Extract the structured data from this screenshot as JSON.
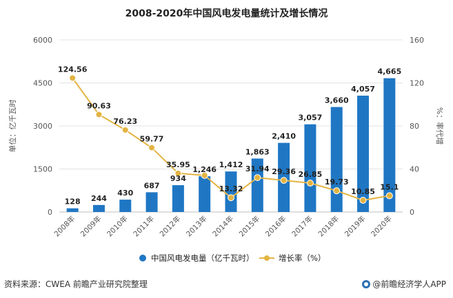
{
  "footer": {
    "source": "资料来源：CWEA 前瞻产业研究院整理",
    "brand": "@前瞻经济学人APP",
    "brand_icon": "qianzhan-logo-icon"
  },
  "colors": {
    "bar": "#1f77c4",
    "line": "#e3b443",
    "grid": "#e3e3e3",
    "axis": "#bdbdbd"
  },
  "chart_data": {
    "type": "bar",
    "title": "2008-2020年中国风电发电量统计及增长情况",
    "categories": [
      "2008年",
      "2009年",
      "2010年",
      "2011年",
      "2012年",
      "2013年",
      "2014年",
      "2015年",
      "2016年",
      "2017年",
      "2018年",
      "2019年",
      "2020年"
    ],
    "ylabel": "单位：亿千瓦时",
    "ylabel_right": "%：率代增",
    "ylim": [
      0,
      6000
    ],
    "yticks": [
      "0",
      "1500",
      "3000",
      "4500",
      "6000"
    ],
    "ylim_right": [
      0,
      160
    ],
    "yticks_right": [
      "0",
      "40",
      "80",
      "120",
      "160"
    ],
    "grid": true,
    "legend_position": "bottom",
    "series": [
      {
        "name": "中国风电发电量（亿千瓦时）",
        "type": "bar",
        "axis": "left",
        "values": [
          128,
          244,
          430,
          687,
          934,
          1246,
          1412,
          1863,
          2410,
          3057,
          3660,
          4057,
          4665
        ],
        "labels": [
          "128",
          "244",
          "430",
          "687",
          "934",
          "1,246",
          "1,412",
          "1,863",
          "2,410",
          "3,057",
          "3,660",
          "4,057",
          "4,665"
        ]
      },
      {
        "name": "增长率（%）",
        "type": "line",
        "axis": "right",
        "values": [
          124.56,
          90.63,
          76.23,
          59.77,
          35.95,
          34.0,
          13.32,
          31.94,
          29.36,
          26.85,
          19.73,
          10.85,
          15.1
        ],
        "labels": [
          "124.56",
          "90.63",
          "76.23",
          "59.77",
          "35.95",
          "",
          "13.32",
          "31.94",
          "29.36",
          "26.85",
          "19.73",
          "10.85",
          "15.1"
        ]
      }
    ]
  }
}
